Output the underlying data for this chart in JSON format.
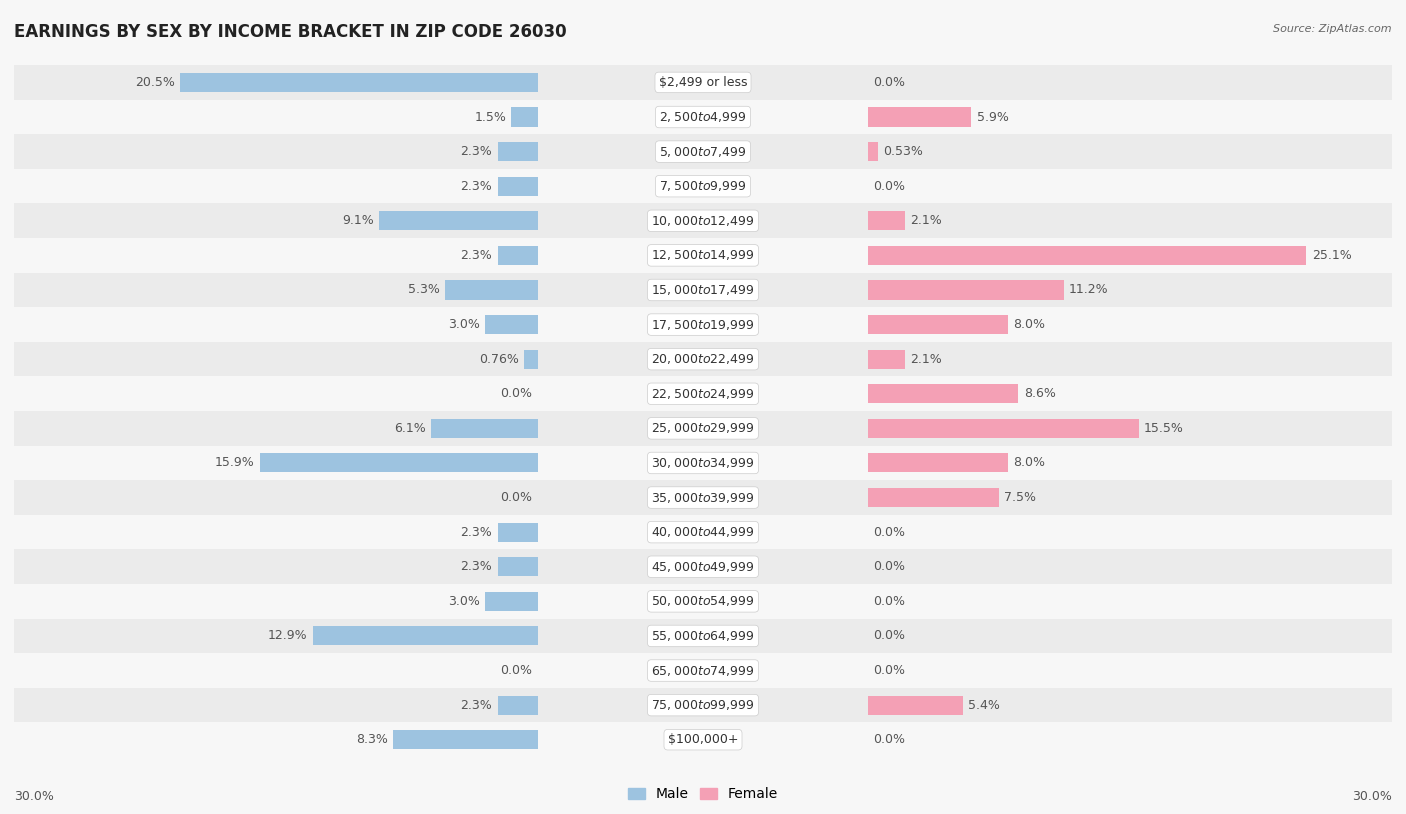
{
  "title": "EARNINGS BY SEX BY INCOME BRACKET IN ZIP CODE 26030",
  "source": "Source: ZipAtlas.com",
  "categories": [
    "$2,499 or less",
    "$2,500 to $4,999",
    "$5,000 to $7,499",
    "$7,500 to $9,999",
    "$10,000 to $12,499",
    "$12,500 to $14,999",
    "$15,000 to $17,499",
    "$17,500 to $19,999",
    "$20,000 to $22,499",
    "$22,500 to $24,999",
    "$25,000 to $29,999",
    "$30,000 to $34,999",
    "$35,000 to $39,999",
    "$40,000 to $44,999",
    "$45,000 to $49,999",
    "$50,000 to $54,999",
    "$55,000 to $64,999",
    "$65,000 to $74,999",
    "$75,000 to $99,999",
    "$100,000+"
  ],
  "male_values": [
    20.5,
    1.5,
    2.3,
    2.3,
    9.1,
    2.3,
    5.3,
    3.0,
    0.76,
    0.0,
    6.1,
    15.9,
    0.0,
    2.3,
    2.3,
    3.0,
    12.9,
    0.0,
    2.3,
    8.3
  ],
  "female_values": [
    0.0,
    5.9,
    0.53,
    0.0,
    2.1,
    25.1,
    11.2,
    8.0,
    2.1,
    8.6,
    15.5,
    8.0,
    7.5,
    0.0,
    0.0,
    0.0,
    0.0,
    0.0,
    5.4,
    0.0
  ],
  "male_color": "#9dc3e0",
  "female_color": "#f4a0b5",
  "row_color_even": "#ebebeb",
  "row_color_odd": "#f7f7f7",
  "bg_color": "#f7f7f7",
  "max_value": 30.0,
  "bar_height": 0.55,
  "title_fontsize": 12,
  "label_fontsize": 9,
  "category_fontsize": 9,
  "source_fontsize": 8
}
